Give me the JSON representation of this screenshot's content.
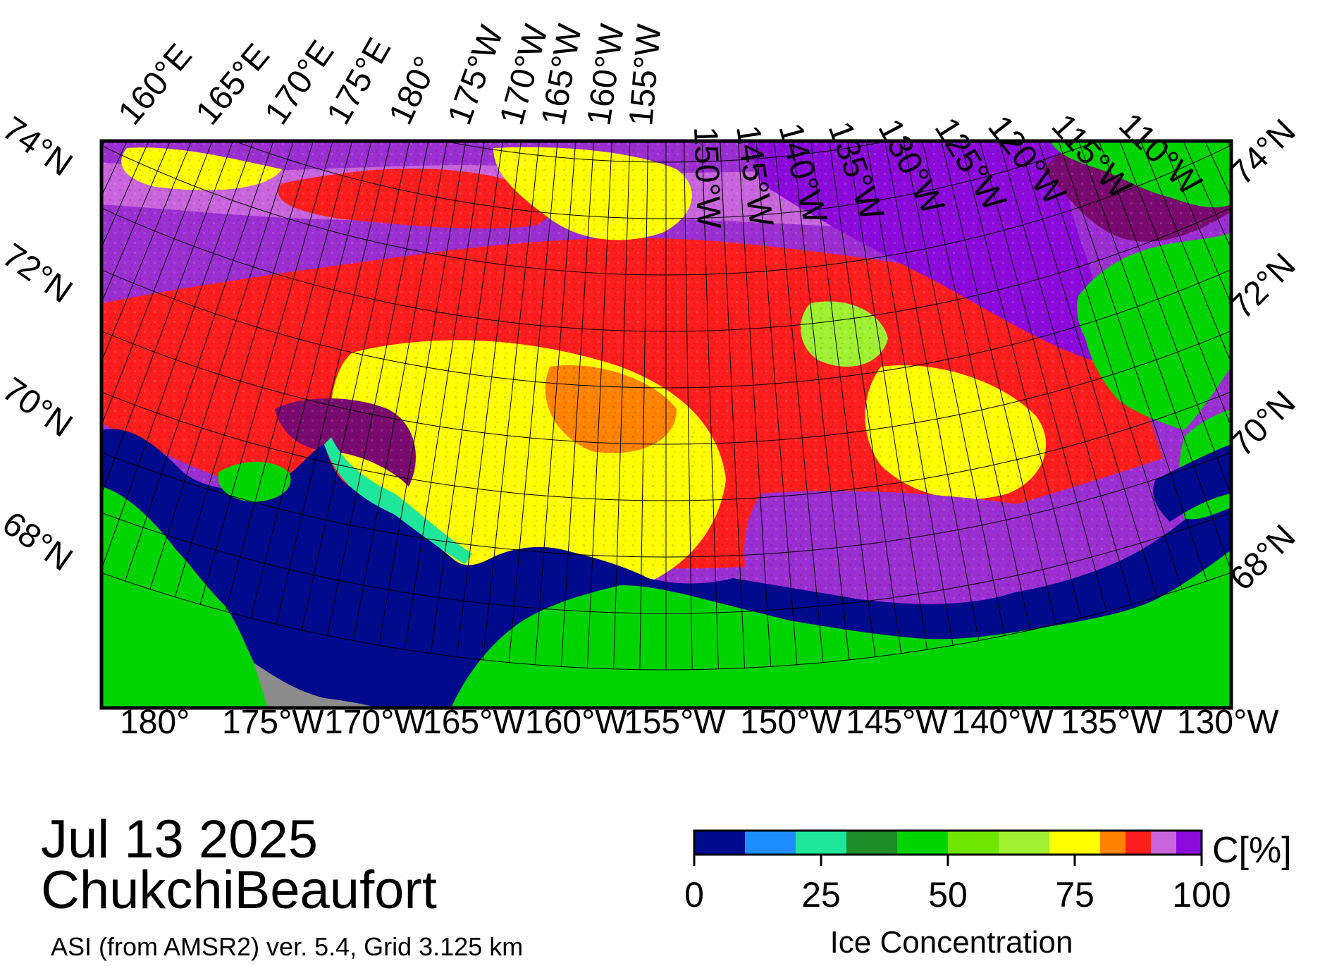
{
  "map": {
    "date": "Jul 13 2025",
    "region": "ChukchiBeaufort",
    "product": "ASI (from AMSR2) ver. 5.4,  Grid 3.125 km",
    "top_lon_labels": [
      "160°E",
      "165°E",
      "170°E",
      "175°E",
      "180°",
      "175°W",
      "170°W",
      "165°W",
      "160°W",
      "155°W",
      "150°W",
      "145°W",
      "140°W",
      "135°W",
      "130°W",
      "125°W",
      "120°W",
      "115°W",
      "110°W"
    ],
    "bottom_lon_labels": [
      "180°",
      "175°W",
      "170°W",
      "165°W",
      "160°W",
      "155°W",
      "150°W",
      "145°W",
      "140°W",
      "135°W",
      "130°W"
    ],
    "left_lat_labels": [
      "74°N",
      "72°N",
      "70°N",
      "68°N"
    ],
    "right_lat_labels": [
      "74°N",
      "72°N",
      "70°N",
      "68°N"
    ],
    "colors": {
      "land": "#00d400",
      "open_water": "#000a8c",
      "no_data": "#8c8c8c",
      "purple": "#9b2fd1",
      "red": "#ff1e1e",
      "yellow": "#ffff00"
    }
  },
  "colorbar": {
    "title": "Ice Concentration",
    "unit": "C[%]",
    "tick_labels": [
      "0",
      "25",
      "50",
      "75",
      "100"
    ],
    "bins": [
      0,
      10,
      20,
      30,
      40,
      50,
      60,
      70,
      80,
      85,
      90,
      95,
      100
    ],
    "colors": [
      "#000a8c",
      "#1e8cff",
      "#1ee69b",
      "#1e8c28",
      "#00d400",
      "#6ee600",
      "#a0f032",
      "#ffff00",
      "#ff8200",
      "#ff1e1e",
      "#c864dc",
      "#8c0adc"
    ]
  }
}
